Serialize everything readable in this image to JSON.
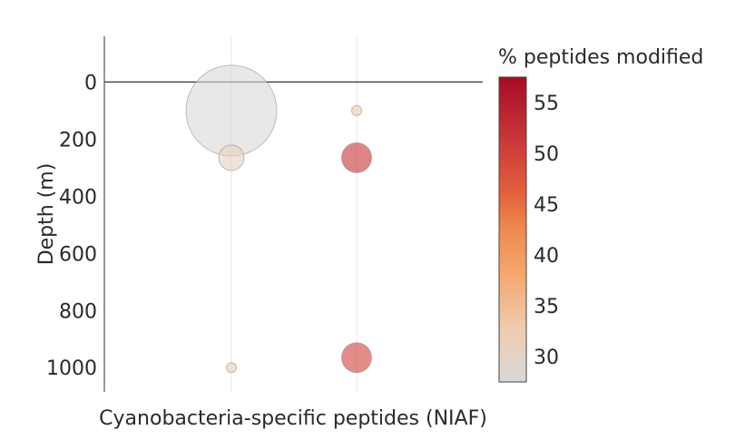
{
  "chart_data": {
    "type": "scatter",
    "title": "",
    "xlabel": "Cyanobacteria-specific peptides (NIAF)",
    "ylabel": "Depth (m)",
    "y_axis": {
      "reversed": true,
      "range": [
        -160,
        1085
      ],
      "ticks": [
        0,
        200,
        400,
        600,
        800,
        1000
      ]
    },
    "x_categories": [
      "1",
      "2"
    ],
    "x_tick_labels_shown": false,
    "grid": {
      "x": true,
      "y": false
    },
    "zero_line": true,
    "size_note": "bubble size is relative",
    "points": [
      {
        "x": "1",
        "depth": 100,
        "pct_modified": 28,
        "size": 1.0
      },
      {
        "x": "1",
        "depth": 265,
        "pct_modified": 31,
        "size": 0.28
      },
      {
        "x": "1",
        "depth": 1000,
        "pct_modified": 32,
        "size": 0.11
      },
      {
        "x": "2",
        "depth": 100,
        "pct_modified": 33,
        "size": 0.11
      },
      {
        "x": "2",
        "depth": 265,
        "pct_modified": 52,
        "size": 0.33
      },
      {
        "x": "2",
        "depth": 965,
        "pct_modified": 50,
        "size": 0.33
      }
    ],
    "colorbar": {
      "title": "% peptides modified",
      "range": [
        27.5,
        57.5
      ],
      "ticks": [
        30,
        35,
        40,
        45,
        50,
        55
      ],
      "position": "right",
      "colorscale": [
        [
          0.0,
          "#d9d9d9"
        ],
        [
          0.17,
          "#eecdb0"
        ],
        [
          0.35,
          "#f4a870"
        ],
        [
          0.5,
          "#ee8a4e"
        ],
        [
          0.62,
          "#e3603d"
        ],
        [
          0.78,
          "#cc3a39"
        ],
        [
          1.0,
          "#a50c24"
        ]
      ]
    }
  }
}
